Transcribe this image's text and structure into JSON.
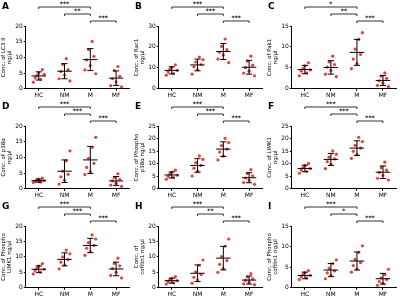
{
  "chart_data": [
    {
      "type": "scatter",
      "panel": "A",
      "y_label": "Conc. of LC3 II ng/µl",
      "categories": [
        "HC",
        "NM",
        "M",
        "MF"
      ],
      "color": "#e8413c",
      "grid": false,
      "ylim": [
        0,
        20
      ],
      "yticks": [
        0,
        5,
        10,
        15,
        20
      ],
      "points": [
        [
          2.1,
          3.5,
          4.2,
          5.0,
          3.0,
          6.1,
          4.6
        ],
        [
          3.2,
          5.5,
          7.8,
          4.4,
          9.6,
          6.1,
          2.5
        ],
        [
          6.0,
          9.2,
          12.5,
          7.4,
          15.1,
          10.3,
          4.8
        ],
        [
          1.0,
          3.2,
          5.8,
          2.2,
          7.1,
          4.0,
          0.6
        ]
      ],
      "mean": [
        4.1,
        5.6,
        9.3,
        3.4
      ],
      "sd": [
        1.3,
        2.4,
        3.5,
        2.3
      ],
      "significance": [
        {
          "from": "HC",
          "to": "M",
          "label": "***"
        },
        {
          "from": "NM",
          "to": "M",
          "label": "**"
        },
        {
          "from": "M",
          "to": "MF",
          "label": "***"
        }
      ]
    },
    {
      "type": "scatter",
      "panel": "B",
      "y_label": "Conc. of Rac1 ng/µl",
      "categories": [
        "HC",
        "NM",
        "M",
        "MF"
      ],
      "color": "#e8413c",
      "grid": false,
      "ylim": [
        0,
        30
      ],
      "yticks": [
        0,
        10,
        20,
        30
      ],
      "points": [
        [
          6.5,
          8.1,
          9.4,
          10.2,
          7.3,
          11.5,
          8.8
        ],
        [
          7.0,
          10.5,
          12.8,
          9.1,
          15.2,
          11.6,
          13.9
        ],
        [
          14.2,
          17.5,
          20.3,
          16.1,
          23.8,
          18.7,
          12.5
        ],
        [
          7.5,
          10.1,
          13.2,
          8.4,
          15.6,
          11.3,
          6.2
        ]
      ],
      "mean": [
        8.8,
        11.4,
        17.8,
        10.3
      ],
      "sd": [
        1.7,
        2.8,
        3.8,
        3.3
      ],
      "significance": [
        {
          "from": "HC",
          "to": "M",
          "label": "***"
        },
        {
          "from": "NM",
          "to": "M",
          "label": "***"
        },
        {
          "from": "M",
          "to": "MF",
          "label": "***"
        }
      ]
    },
    {
      "type": "scatter",
      "panel": "C",
      "y_label": "Conc. of Pak1 ng/µl",
      "categories": [
        "HC",
        "NM",
        "M",
        "MF"
      ],
      "color": "#e8413c",
      "grid": false,
      "ylim": [
        0,
        15
      ],
      "yticks": [
        0,
        5,
        10,
        15
      ],
      "points": [
        [
          3.1,
          4.2,
          4.8,
          5.5,
          3.8,
          6.2,
          4.5
        ],
        [
          3.5,
          5.2,
          6.4,
          4.4,
          7.8,
          5.8,
          2.9
        ],
        [
          4.8,
          7.1,
          9.5,
          6.0,
          11.8,
          8.2,
          13.4
        ],
        [
          0.8,
          1.9,
          3.0,
          1.4,
          3.8,
          2.5,
          0.5
        ]
      ],
      "mean": [
        4.6,
        5.1,
        8.7,
        2.0
      ],
      "sd": [
        1.0,
        1.6,
        3.1,
        1.2
      ],
      "significance": [
        {
          "from": "HC",
          "to": "M",
          "label": "*"
        },
        {
          "from": "NM",
          "to": "M",
          "label": "**"
        },
        {
          "from": "M",
          "to": "MF",
          "label": "***"
        }
      ]
    },
    {
      "type": "scatter",
      "panel": "D",
      "y_label": "Conc. of p38α ng/µl",
      "categories": [
        "HC",
        "NM",
        "M",
        "MF"
      ],
      "color": "#e8413c",
      "grid": false,
      "ylim": [
        0,
        20
      ],
      "yticks": [
        0,
        5,
        10,
        15,
        20
      ],
      "points": [
        [
          2.0,
          2.4,
          2.8,
          3.1,
          2.2,
          3.4,
          2.6
        ],
        [
          1.5,
          3.8,
          5.6,
          2.7,
          8.9,
          4.6,
          12.1
        ],
        [
          4.5,
          6.8,
          9.7,
          5.5,
          13.2,
          8.1,
          16.4
        ],
        [
          1.2,
          2.5,
          3.6,
          1.8,
          4.8,
          3.0,
          0.8
        ]
      ],
      "mean": [
        2.6,
        5.6,
        9.2,
        2.5
      ],
      "sd": [
        0.5,
        3.6,
        4.3,
        1.4
      ],
      "significance": [
        {
          "from": "HC",
          "to": "M",
          "label": "***"
        },
        {
          "from": "NM",
          "to": "M",
          "label": "***"
        },
        {
          "from": "M",
          "to": "MF",
          "label": "***"
        }
      ]
    },
    {
      "type": "scatter",
      "panel": "E",
      "y_label": "Conc. of Phospho p38α ng/µl",
      "categories": [
        "HC",
        "NM",
        "M",
        "MF"
      ],
      "color": "#e8413c",
      "grid": false,
      "ylim": [
        0,
        25
      ],
      "yticks": [
        0,
        5,
        10,
        15,
        20,
        25
      ],
      "points": [
        [
          3.8,
          5.0,
          5.9,
          6.6,
          4.5,
          7.4,
          5.4
        ],
        [
          5.1,
          8.2,
          10.4,
          7.0,
          13.1,
          9.3,
          11.7
        ],
        [
          11.5,
          14.6,
          17.2,
          13.0,
          20.1,
          15.8,
          18.4
        ],
        [
          2.5,
          4.3,
          6.1,
          3.4,
          7.6,
          5.2,
          1.8
        ]
      ],
      "mean": [
        5.5,
        9.3,
        15.8,
        4.4
      ],
      "sd": [
        1.2,
        2.7,
        2.9,
        2.0
      ],
      "significance": [
        {
          "from": "HC",
          "to": "M",
          "label": "***"
        },
        {
          "from": "NM",
          "to": "M",
          "label": "***"
        },
        {
          "from": "M",
          "to": "MF",
          "label": "***"
        }
      ]
    },
    {
      "type": "scatter",
      "panel": "F",
      "y_label": "Conc. of LIMK1 ng/µl",
      "categories": [
        "HC",
        "NM",
        "M",
        "MF"
      ],
      "color": "#e8413c",
      "grid": false,
      "ylim": [
        0,
        25
      ],
      "yticks": [
        0,
        5,
        10,
        15,
        20,
        25
      ],
      "points": [
        [
          6.2,
          7.5,
          8.4,
          9.3,
          6.9,
          10.1,
          8.0
        ],
        [
          8.0,
          10.8,
          12.6,
          9.7,
          15.1,
          11.9,
          13.8
        ],
        [
          12.1,
          14.9,
          17.3,
          13.6,
          20.5,
          16.2,
          18.8
        ],
        [
          4.2,
          6.5,
          8.4,
          5.3,
          10.6,
          7.4,
          3.5
        ]
      ],
      "mean": [
        8.1,
        11.7,
        16.2,
        6.6
      ],
      "sd": [
        1.3,
        2.4,
        2.9,
        2.5
      ],
      "significance": [
        {
          "from": "HC",
          "to": "M",
          "label": "***"
        },
        {
          "from": "NM",
          "to": "M",
          "label": "***"
        },
        {
          "from": "M",
          "to": "MF",
          "label": "***"
        }
      ]
    },
    {
      "type": "scatter",
      "panel": "G",
      "y_label": "Conc. of Phospho LIMK1 ng/µl",
      "categories": [
        "HC",
        "NM",
        "M",
        "MF"
      ],
      "color": "#e8413c",
      "grid": false,
      "ylim": [
        0,
        20
      ],
      "yticks": [
        0,
        5,
        10,
        15,
        20
      ],
      "points": [
        [
          4.5,
          5.6,
          6.3,
          7.0,
          5.1,
          7.8,
          6.0
        ],
        [
          6.1,
          8.3,
          10.0,
          7.4,
          12.2,
          9.1,
          11.0
        ],
        [
          10.5,
          12.8,
          14.6,
          11.6,
          17.1,
          13.7,
          15.8
        ],
        [
          4.0,
          6.2,
          7.9,
          5.0,
          9.6,
          7.1,
          3.2
        ]
      ],
      "mean": [
        6.0,
        9.2,
        13.7,
        6.1
      ],
      "sd": [
        1.1,
        2.1,
        2.3,
        2.2
      ],
      "significance": [
        {
          "from": "HC",
          "to": "M",
          "label": "***"
        },
        {
          "from": "NM",
          "to": "M",
          "label": "***"
        },
        {
          "from": "M",
          "to": "MF",
          "label": "***"
        }
      ]
    },
    {
      "type": "scatter",
      "panel": "H",
      "y_label": "Conc. of cofilin1 ng/µl",
      "categories": [
        "HC",
        "NM",
        "M",
        "MF"
      ],
      "color": "#e8413c",
      "grid": false,
      "ylim": [
        0,
        20
      ],
      "yticks": [
        0,
        5,
        10,
        15,
        20
      ],
      "points": [
        [
          1.2,
          2.0,
          2.6,
          3.1,
          1.6,
          3.6,
          2.3
        ],
        [
          1.5,
          3.4,
          5.2,
          2.5,
          7.3,
          4.3,
          9.0
        ],
        [
          5.0,
          7.6,
          10.1,
          6.2,
          13.5,
          8.8,
          15.8
        ],
        [
          1.3,
          2.4,
          3.5,
          1.8,
          4.6,
          2.9,
          1.0
        ]
      ],
      "mean": [
        2.3,
        4.7,
        9.6,
        2.5
      ],
      "sd": [
        0.8,
        2.7,
        3.8,
        1.3
      ],
      "significance": [
        {
          "from": "HC",
          "to": "M",
          "label": "***"
        },
        {
          "from": "NM",
          "to": "M",
          "label": "**"
        },
        {
          "from": "M",
          "to": "MF",
          "label": "***"
        }
      ]
    },
    {
      "type": "scatter",
      "panel": "I",
      "y_label": "Conc. of Phospho cofilin1 ng/µl",
      "categories": [
        "HC",
        "NM",
        "M",
        "MF"
      ],
      "color": "#e8413c",
      "grid": false,
      "ylim": [
        0,
        15
      ],
      "yticks": [
        0,
        5,
        10,
        15
      ],
      "points": [
        [
          2.0,
          2.7,
          3.2,
          3.7,
          2.4,
          4.2,
          3.0
        ],
        [
          2.2,
          3.6,
          4.7,
          3.0,
          5.9,
          4.1,
          6.8
        ],
        [
          3.8,
          5.4,
          6.9,
          4.6,
          8.6,
          6.1,
          10.2
        ],
        [
          0.6,
          1.5,
          2.4,
          1.1,
          3.2,
          2.0,
          4.5
        ]
      ],
      "mean": [
        3.0,
        4.3,
        6.5,
        2.2
      ],
      "sd": [
        0.8,
        1.6,
        2.2,
        1.3
      ],
      "significance": [
        {
          "from": "HC",
          "to": "M",
          "label": "***"
        },
        {
          "from": "NM",
          "to": "M",
          "label": "*"
        },
        {
          "from": "M",
          "to": "MF",
          "label": "***"
        }
      ]
    }
  ]
}
